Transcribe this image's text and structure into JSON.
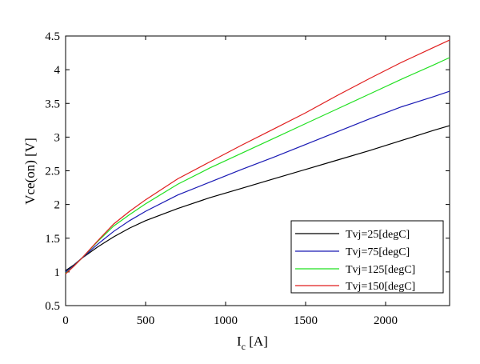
{
  "chart_data": {
    "type": "line",
    "title": "",
    "xlabel_main": "I",
    "xlabel_sub": "c",
    "xlabel_unit": " [A]",
    "ylabel": "Vce(on) [V]",
    "xlim": [
      0,
      2400
    ],
    "ylim": [
      0.5,
      4.5
    ],
    "xticks": [
      0,
      500,
      1000,
      1500,
      2000
    ],
    "xtick_labels": [
      "0",
      "500",
      "1000",
      "1500",
      "2000"
    ],
    "yticks": [
      0.5,
      1,
      1.5,
      2,
      2.5,
      3,
      3.5,
      4,
      4.5
    ],
    "ytick_labels": [
      "0.5",
      "1",
      "1.5",
      "2",
      "2.5",
      "3",
      "3.5",
      "4",
      "4.5"
    ],
    "grid": false,
    "legend_position": "bottom-right",
    "series": [
      {
        "name": "Tvj=25[degC]",
        "color": "#000000",
        "x": [
          0,
          50,
          100,
          200,
          300,
          400,
          500,
          700,
          900,
          1100,
          1300,
          1500,
          1700,
          1900,
          2100,
          2300,
          2400
        ],
        "y": [
          1.02,
          1.1,
          1.2,
          1.37,
          1.52,
          1.65,
          1.76,
          1.94,
          2.1,
          2.24,
          2.38,
          2.52,
          2.66,
          2.8,
          2.95,
          3.1,
          3.17
        ]
      },
      {
        "name": "Tvj=75[degC]",
        "color": "#1a1ab4",
        "x": [
          0,
          50,
          100,
          200,
          300,
          400,
          500,
          700,
          900,
          1100,
          1300,
          1500,
          1700,
          1900,
          2100,
          2300,
          2400
        ],
        "y": [
          1.0,
          1.09,
          1.2,
          1.41,
          1.6,
          1.76,
          1.9,
          2.14,
          2.33,
          2.52,
          2.7,
          2.89,
          3.08,
          3.27,
          3.45,
          3.6,
          3.68
        ]
      },
      {
        "name": "Tvj=125[degC]",
        "color": "#22e022",
        "x": [
          0,
          50,
          100,
          200,
          300,
          400,
          500,
          700,
          900,
          1100,
          1300,
          1500,
          1700,
          1900,
          2100,
          2300,
          2400
        ],
        "y": [
          0.98,
          1.08,
          1.2,
          1.45,
          1.68,
          1.85,
          2.01,
          2.3,
          2.54,
          2.76,
          2.98,
          3.2,
          3.42,
          3.64,
          3.86,
          4.07,
          4.18
        ]
      },
      {
        "name": "Tvj=150[degC]",
        "color": "#e01e1e",
        "x": [
          0,
          50,
          100,
          200,
          300,
          400,
          500,
          700,
          900,
          1100,
          1300,
          1500,
          1700,
          1900,
          2100,
          2300,
          2400
        ],
        "y": [
          0.97,
          1.08,
          1.2,
          1.46,
          1.71,
          1.9,
          2.07,
          2.38,
          2.63,
          2.88,
          3.12,
          3.36,
          3.62,
          3.87,
          4.11,
          4.33,
          4.44
        ]
      }
    ]
  }
}
